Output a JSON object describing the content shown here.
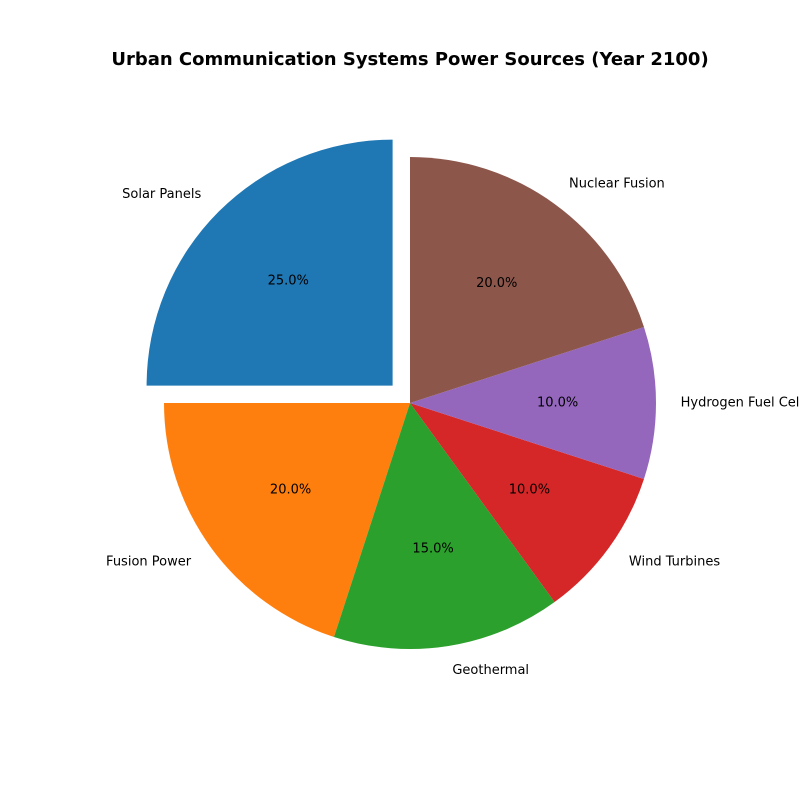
{
  "chart_data": {
    "type": "pie",
    "title": "Urban Communication Systems Power Sources (Year 2100)",
    "categories": [
      "Solar Panels",
      "Fusion Power",
      "Geothermal",
      "Wind Turbines",
      "Hydrogen Fuel Cells",
      "Nuclear Fusion"
    ],
    "values": [
      25,
      20,
      15,
      10,
      10,
      20
    ],
    "percent_labels": [
      "25.0%",
      "20.0%",
      "15.0%",
      "10.0%",
      "10.0%",
      "20.0%"
    ],
    "colors": [
      "#1f77b4",
      "#ff7f0e",
      "#2ca02c",
      "#d62728",
      "#9467bd",
      "#8c564b"
    ],
    "start_angle_deg": 90,
    "direction": "counterclockwise",
    "exploded": [
      "Solar Panels"
    ]
  }
}
